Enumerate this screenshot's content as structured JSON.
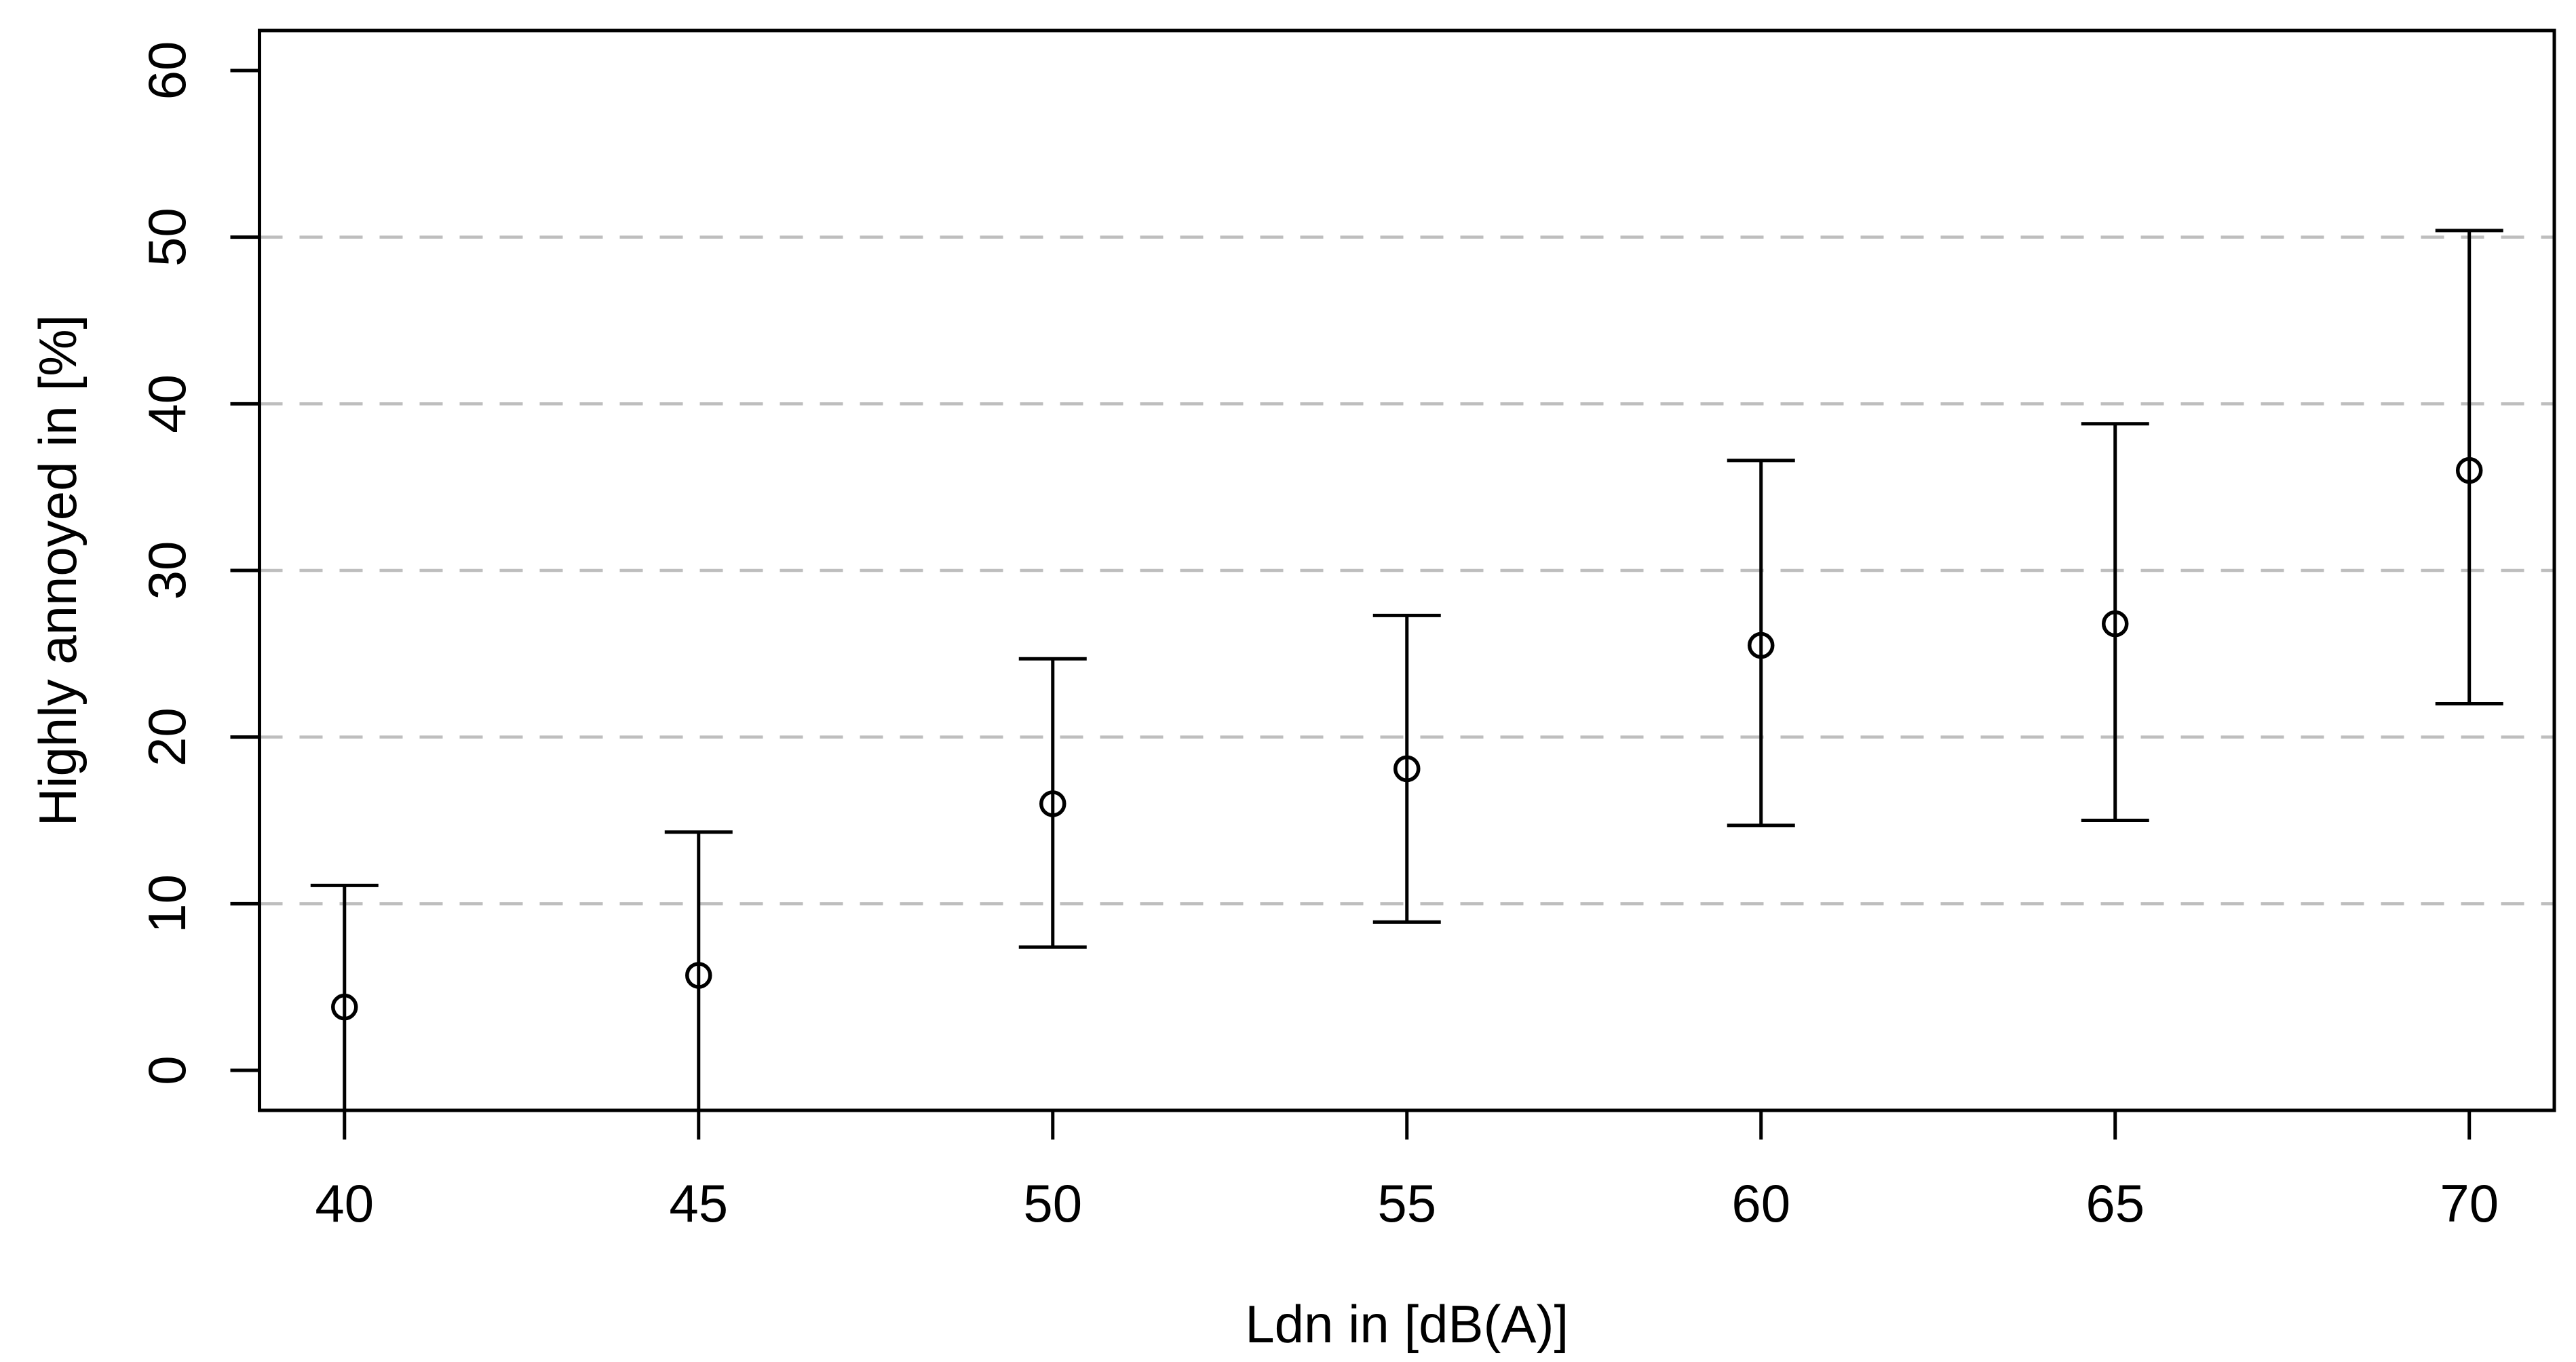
{
  "chart_data": {
    "type": "scatter",
    "subtype": "points-with-error-bars",
    "title": "",
    "xlabel": "Ldn in [dB(A)]",
    "ylabel": "Highly annoyed in [%]",
    "x": [
      40,
      45,
      50,
      55,
      60,
      65,
      70
    ],
    "series": [
      {
        "name": "percent-highly-annoyed-with-ci",
        "points": [
          {
            "x": 40,
            "y": 3.8,
            "ci_high": 11.1,
            "ci_low": null,
            "ci_low_clipped": true
          },
          {
            "x": 45,
            "y": 5.7,
            "ci_high": 14.3,
            "ci_low": null,
            "ci_low_clipped": true
          },
          {
            "x": 50,
            "y": 16.0,
            "ci_high": 24.7,
            "ci_low": 7.4,
            "ci_low_clipped": false
          },
          {
            "x": 55,
            "y": 18.1,
            "ci_high": 27.3,
            "ci_low": 8.9,
            "ci_low_clipped": false
          },
          {
            "x": 60,
            "y": 25.5,
            "ci_high": 36.6,
            "ci_low": 14.7,
            "ci_low_clipped": false
          },
          {
            "x": 65,
            "y": 26.8,
            "ci_high": 38.8,
            "ci_low": 15.0,
            "ci_low_clipped": false
          },
          {
            "x": 70,
            "y": 36.0,
            "ci_high": 50.4,
            "ci_low": 22.0,
            "ci_low_clipped": false
          }
        ]
      }
    ],
    "xlim": [
      38.8,
      71.2
    ],
    "ylim": [
      -2.4,
      62.4
    ],
    "xticks": [
      40,
      45,
      50,
      55,
      60,
      65,
      70
    ],
    "yticks": [
      0,
      10,
      20,
      30,
      40,
      50,
      60
    ],
    "gridlines_y": [
      10,
      20,
      30,
      40,
      50
    ],
    "grid_on": true,
    "legend": null,
    "point_style": "open-circle",
    "colors": {
      "line": "#000000",
      "grid": "#bebebe",
      "background": "#ffffff",
      "text": "#000000"
    }
  }
}
